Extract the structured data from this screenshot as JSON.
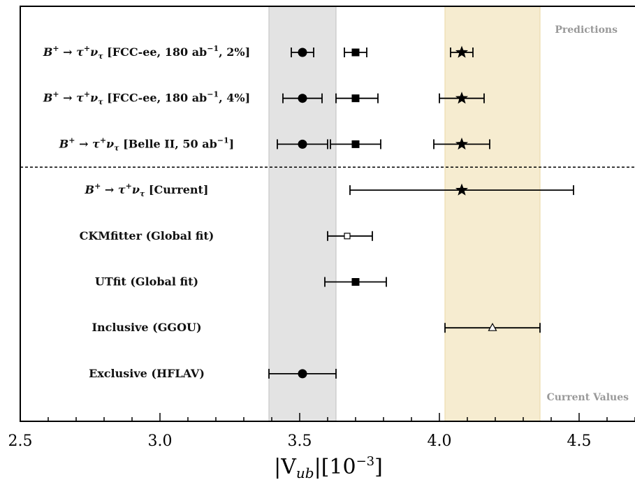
{
  "chart_data": {
    "type": "scatter",
    "title": "",
    "xlabel_parts": [
      "|V",
      "ub",
      "|[10",
      "−3",
      "]"
    ],
    "xlim": [
      2.5,
      4.7
    ],
    "x_ticks": [
      "2.5",
      "3.0",
      "3.5",
      "4.0",
      "4.5"
    ],
    "grid": false,
    "annotations": {
      "top_right": "Predictions",
      "bottom_right": "Current Values"
    },
    "bands": [
      {
        "name": "exclusive-band",
        "from": 3.39,
        "to": 3.63,
        "color": "#e3e3e3"
      },
      {
        "name": "inclusive-band",
        "from": 4.02,
        "to": 4.36,
        "color": "#f6ecd0"
      }
    ],
    "separator_after_row": 2,
    "rows": [
      {
        "label_parts": [
          "B",
          "+",
          " → τ",
          "+",
          "ν",
          "τ",
          " [FCC-ee, 180 ab",
          "−1",
          ", 2%]"
        ],
        "points": [
          {
            "marker": "circle",
            "x": 3.51,
            "xerr_low": 3.47,
            "xerr_high": 3.55
          },
          {
            "marker": "square",
            "x": 3.7,
            "xerr_low": 3.66,
            "xerr_high": 3.74
          },
          {
            "marker": "star",
            "x": 4.08,
            "xerr_low": 4.04,
            "xerr_high": 4.12
          }
        ]
      },
      {
        "label_parts": [
          "B",
          "+",
          " → τ",
          "+",
          "ν",
          "τ",
          " [FCC-ee, 180 ab",
          "−1",
          ", 4%]"
        ],
        "points": [
          {
            "marker": "circle",
            "x": 3.51,
            "xerr_low": 3.44,
            "xerr_high": 3.58
          },
          {
            "marker": "square",
            "x": 3.7,
            "xerr_low": 3.63,
            "xerr_high": 3.78
          },
          {
            "marker": "star",
            "x": 4.08,
            "xerr_low": 4.0,
            "xerr_high": 4.16
          }
        ]
      },
      {
        "label_parts": [
          "B",
          "+",
          " → τ",
          "+",
          "ν",
          "τ",
          " [Belle II, 50 ab",
          "−1",
          "]"
        ],
        "points": [
          {
            "marker": "circle",
            "x": 3.51,
            "xerr_low": 3.42,
            "xerr_high": 3.6
          },
          {
            "marker": "square",
            "x": 3.7,
            "xerr_low": 3.61,
            "xerr_high": 3.79
          },
          {
            "marker": "star",
            "x": 4.08,
            "xerr_low": 3.98,
            "xerr_high": 4.18
          }
        ]
      },
      {
        "label_parts": [
          "B",
          "+",
          " → τ",
          "+",
          "ν",
          "τ",
          " [Current]",
          "",
          ""
        ],
        "points": [
          {
            "marker": "star",
            "x": 4.08,
            "xerr_low": 3.68,
            "xerr_high": 4.48
          }
        ]
      },
      {
        "label": "CKMfitter (Global fit)",
        "points": [
          {
            "marker": "open-square",
            "x": 3.67,
            "xerr_low": 3.6,
            "xerr_high": 3.76
          }
        ]
      },
      {
        "label": "UTfit (Global fit)",
        "points": [
          {
            "marker": "square",
            "x": 3.7,
            "xerr_low": 3.59,
            "xerr_high": 3.81
          }
        ]
      },
      {
        "label": "Inclusive (GGOU)",
        "points": [
          {
            "marker": "open-triangle",
            "x": 4.19,
            "xerr_low": 4.02,
            "xerr_high": 4.36
          }
        ]
      },
      {
        "label": "Exclusive (HFLAV)",
        "points": [
          {
            "marker": "circle",
            "x": 3.51,
            "xerr_low": 3.39,
            "xerr_high": 3.63
          }
        ]
      }
    ]
  }
}
